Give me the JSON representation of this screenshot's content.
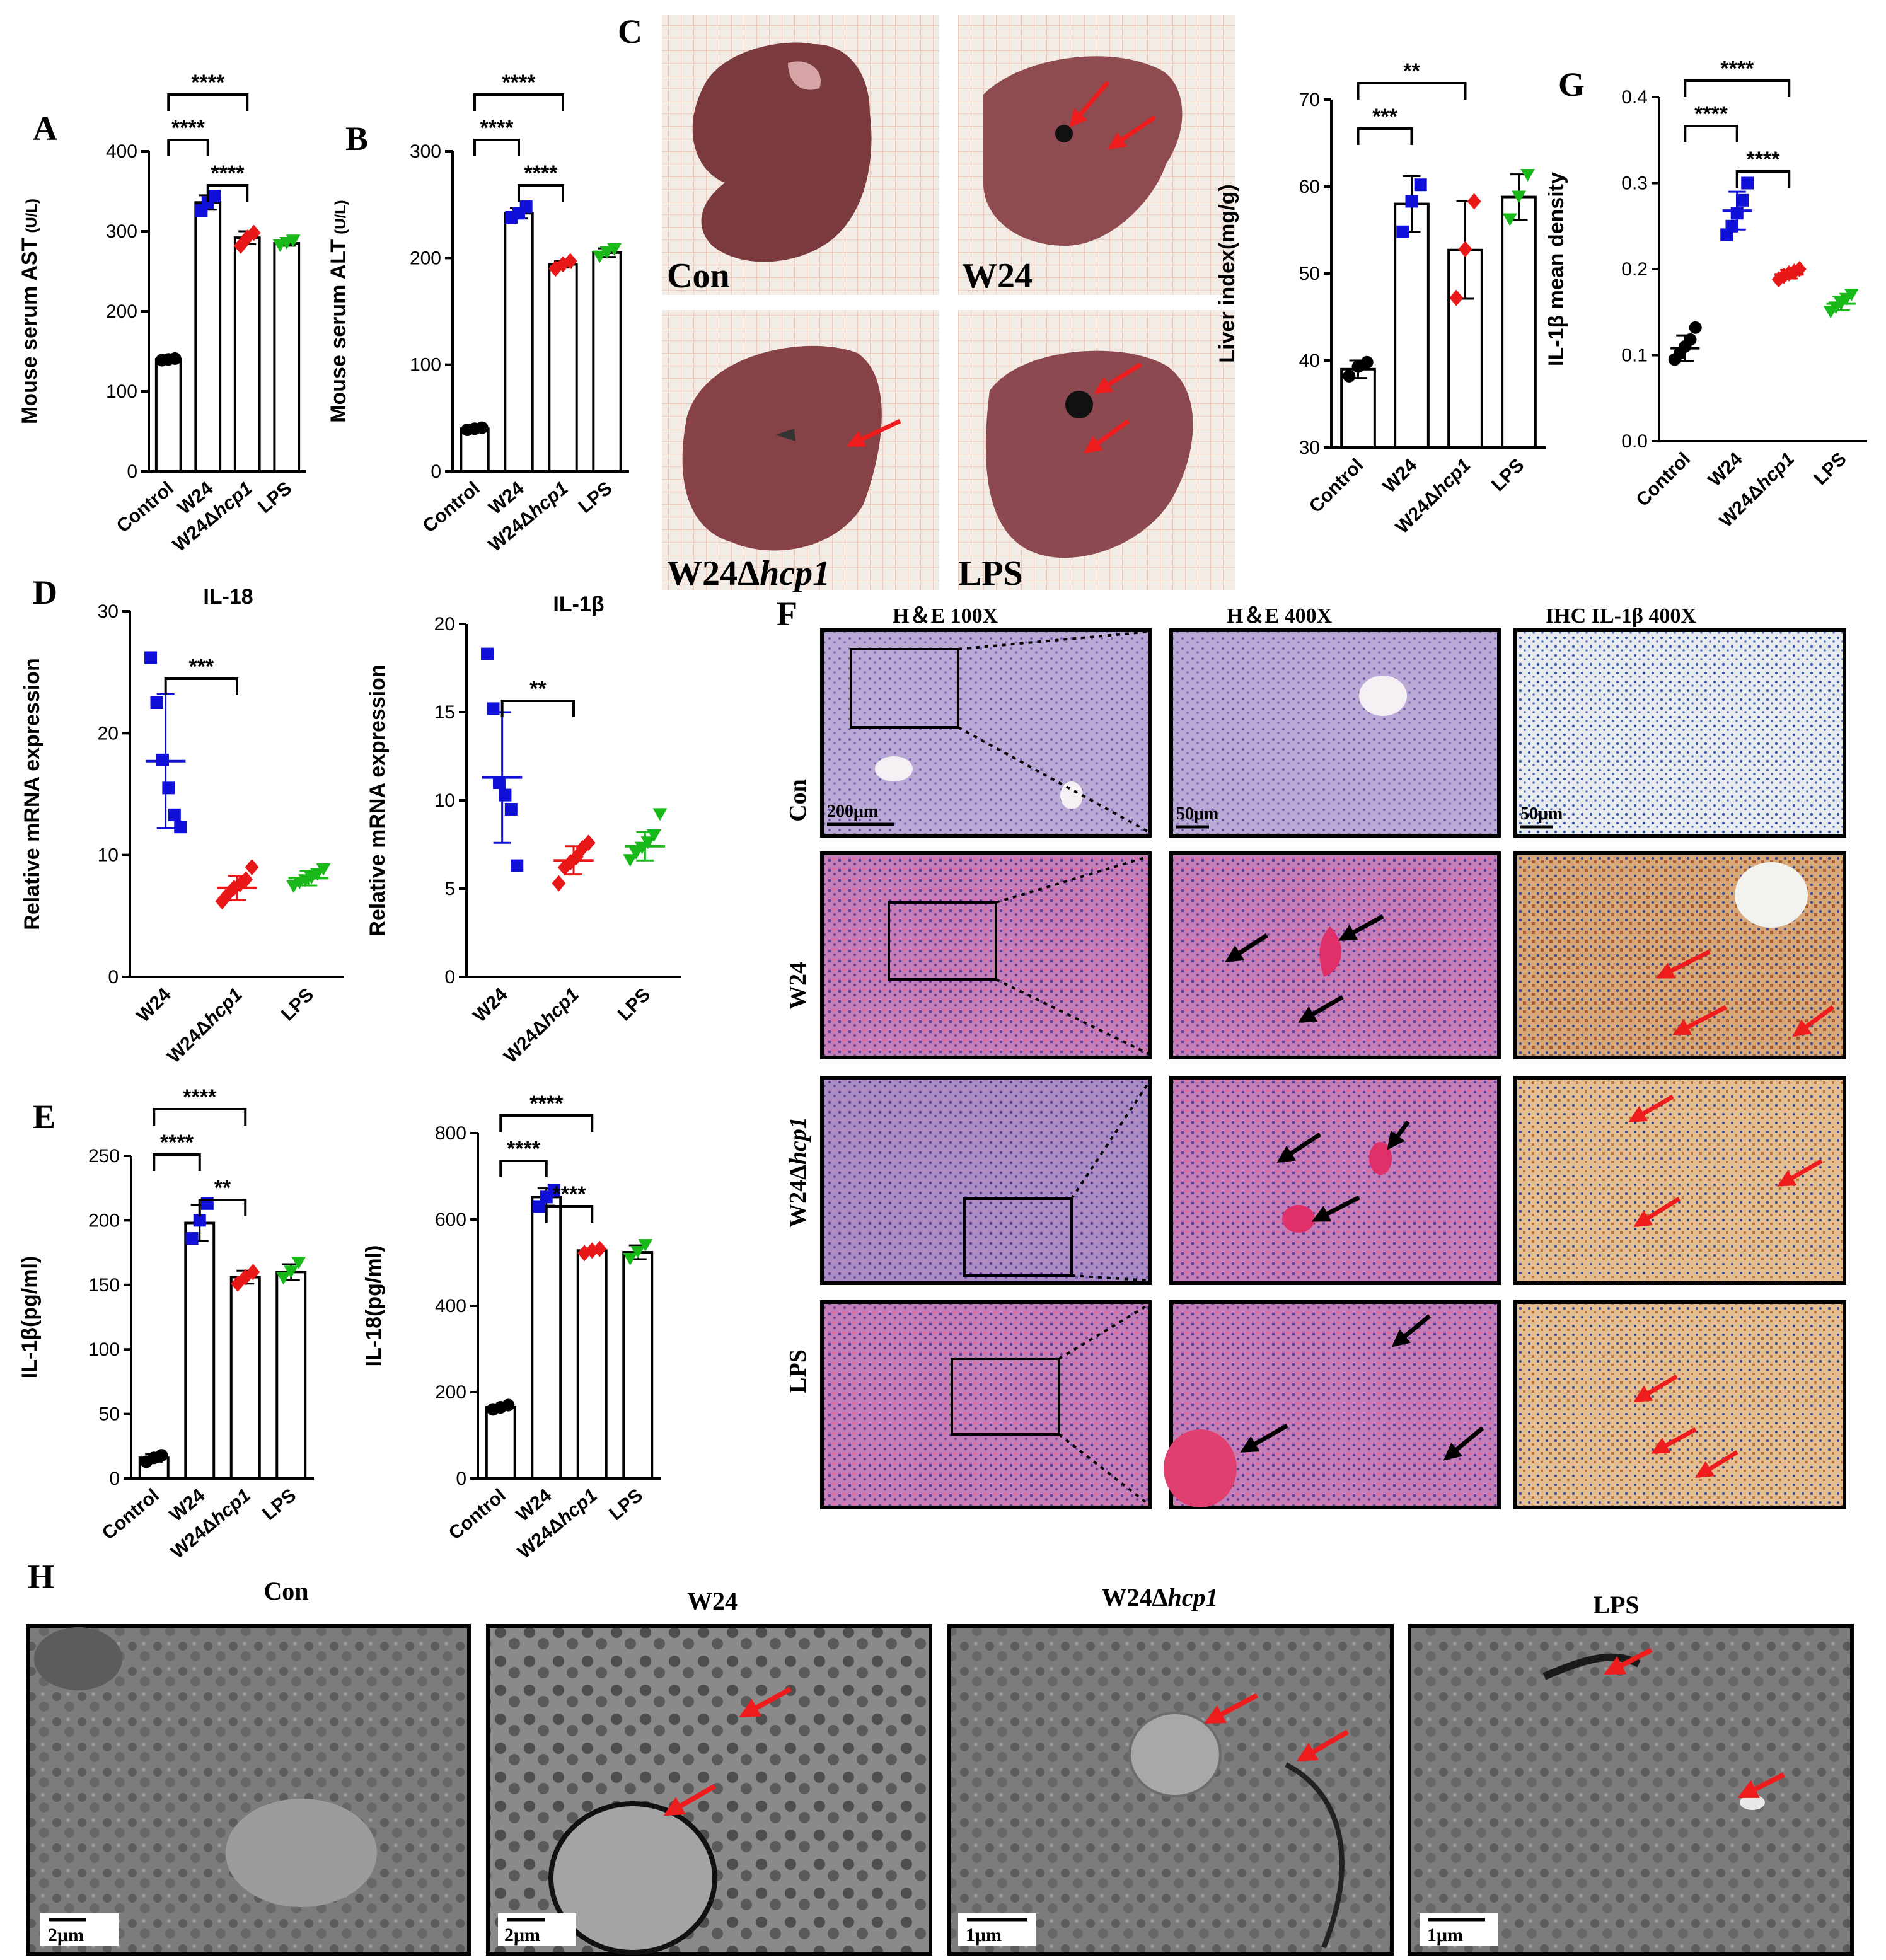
{
  "panels": {
    "A": "A",
    "B": "B",
    "C": "C",
    "D": "D",
    "E": "E",
    "F": "F",
    "G": "G",
    "H": "H"
  },
  "colors": {
    "Control": "#000000",
    "W24": "#1010d8",
    "W24Δhcp1": "#e81818",
    "LPS": "#18b818"
  },
  "liver_photos": {
    "labels": [
      "Con",
      "W24",
      "W24Δ",
      "LPS"
    ],
    "label_italic_suffix": "hcp1"
  },
  "histology": {
    "col_headers": [
      "H＆E      100X",
      "H＆E      400X",
      "IHC   IL-1β   400X"
    ],
    "row_labels": [
      "Con",
      "W24",
      "W24Δ",
      "LPS"
    ],
    "row_label_italic_suffix": "hcp1",
    "scale_bars": [
      "200μm",
      "50μm",
      "50μm"
    ]
  },
  "tem": {
    "titles": [
      "Con",
      "W24",
      "W24Δ",
      "LPS"
    ],
    "title_italic_suffix": "hcp1",
    "scale_bars": [
      "2μm",
      "2μm",
      "1μm",
      "1μm"
    ]
  },
  "chart_data": [
    {
      "id": "A",
      "type": "bar",
      "ylabel": "Mouse serum AST",
      "ylabel_unit": "(U/L)",
      "ylim": [
        0,
        400
      ],
      "yticks": [
        0,
        100,
        200,
        300,
        400
      ],
      "categories": [
        "Control",
        "W24",
        "W24Δhcp1",
        "LPS"
      ],
      "values": [
        140,
        336,
        292,
        285
      ],
      "points": [
        [
          139,
          140,
          141
        ],
        [
          326,
          336,
          344
        ],
        [
          282,
          292,
          298
        ],
        [
          282,
          285,
          288
        ]
      ],
      "errors": [
        2,
        9,
        8,
        3
      ],
      "significance": [
        {
          "from": 0,
          "to": 2,
          "label": "****"
        },
        {
          "from": 0,
          "to": 1,
          "label": "****"
        },
        {
          "from": 1,
          "to": 2,
          "label": "****"
        }
      ]
    },
    {
      "id": "B",
      "type": "bar",
      "ylabel": "Mouse serum ALT",
      "ylabel_unit": "(U/L)",
      "ylim": [
        0,
        300
      ],
      "yticks": [
        0,
        100,
        200,
        300
      ],
      "categories": [
        "Control",
        "W24",
        "W24Δhcp1",
        "LPS"
      ],
      "values": [
        40,
        242,
        194,
        205
      ],
      "points": [
        [
          39,
          40,
          41
        ],
        [
          238,
          242,
          248
        ],
        [
          190,
          194,
          197
        ],
        [
          201,
          205,
          208
        ]
      ],
      "errors": [
        1,
        5,
        3,
        4
      ],
      "significance": [
        {
          "from": 0,
          "to": 2,
          "label": "****"
        },
        {
          "from": 0,
          "to": 1,
          "label": "****"
        },
        {
          "from": 1,
          "to": 2,
          "label": "****"
        }
      ]
    },
    {
      "id": "C-index",
      "type": "bar",
      "ylabel": "Liver index(mg/g)",
      "ylim": [
        30,
        70
      ],
      "yticks": [
        30,
        40,
        50,
        60,
        70
      ],
      "categories": [
        "Control",
        "W24",
        "W24Δhcp1",
        "LPS"
      ],
      "values": [
        39,
        58,
        52.7,
        58.8
      ],
      "points": [
        [
          38.2,
          39.3,
          39.8
        ],
        [
          54.8,
          58.3,
          60.2
        ],
        [
          47.2,
          52.8,
          58.3
        ],
        [
          56.2,
          58.8,
          61.3
        ]
      ],
      "errors": [
        1,
        3.2,
        5.6,
        2.6
      ],
      "significance": [
        {
          "from": 0,
          "to": 2,
          "label": "**"
        },
        {
          "from": 0,
          "to": 1,
          "label": "***"
        }
      ]
    },
    {
      "id": "G",
      "type": "scatter",
      "ylabel": "IL-1β mean density",
      "ylim": [
        0.0,
        0.4
      ],
      "yticks": [
        "0.0",
        "0.1",
        "0.2",
        "0.3",
        "0.4"
      ],
      "categories": [
        "Control",
        "W24",
        "W24Δhcp1",
        "LPS"
      ],
      "values": [
        0.108,
        0.268,
        0.194,
        0.16
      ],
      "points": [
        [
          0.095,
          0.102,
          0.11,
          0.118,
          0.132
        ],
        [
          0.24,
          0.25,
          0.265,
          0.28,
          0.3
        ],
        [
          0.188,
          0.192,
          0.195,
          0.197,
          0.2
        ],
        [
          0.15,
          0.155,
          0.16,
          0.165,
          0.17
        ]
      ],
      "errors": [
        0.015,
        0.022,
        0.005,
        0.008
      ],
      "significance": [
        {
          "from": 0,
          "to": 2,
          "label": "****"
        },
        {
          "from": 0,
          "to": 1,
          "label": "****"
        },
        {
          "from": 1,
          "to": 2,
          "label": "****"
        }
      ]
    },
    {
      "id": "D-IL18",
      "type": "scatter",
      "title": "IL-18",
      "ylabel": "Relative mRNA expression",
      "ylim": [
        0,
        30
      ],
      "yticks": [
        0,
        10,
        20,
        30
      ],
      "categories": [
        "W24",
        "W24Δhcp1",
        "LPS"
      ],
      "values": [
        17.7,
        7.3,
        8.1
      ],
      "points": [
        [
          26.2,
          22.5,
          17.8,
          15.5,
          13.3,
          12.3
        ],
        [
          6.2,
          6.8,
          7.3,
          7.6,
          8.0,
          9.0
        ],
        [
          7.4,
          7.7,
          7.9,
          8.1,
          8.4,
          8.8
        ]
      ],
      "errors": [
        5.5,
        1.0,
        0.6
      ],
      "significance": [
        {
          "from": 0,
          "to": 1,
          "label": "***"
        }
      ]
    },
    {
      "id": "D-IL1b",
      "type": "scatter",
      "title": "IL-1β",
      "ylabel": "Relative mRNA expression",
      "ylim": [
        0,
        20
      ],
      "yticks": [
        0,
        5,
        10,
        15,
        20
      ],
      "categories": [
        "W24",
        "W24Δhcp1",
        "LPS"
      ],
      "values": [
        11.3,
        6.6,
        7.4
      ],
      "points": [
        [
          18.3,
          15.2,
          11.0,
          10.3,
          9.5,
          6.3
        ],
        [
          5.3,
          6.2,
          6.5,
          6.8,
          7.3,
          7.6
        ],
        [
          6.6,
          7.0,
          7.3,
          7.6,
          8.0,
          9.2
        ]
      ],
      "errors": [
        3.7,
        0.8,
        0.8
      ],
      "significance": [
        {
          "from": 0,
          "to": 1,
          "label": "**"
        }
      ]
    },
    {
      "id": "E-IL1b",
      "type": "bar",
      "ylabel": "IL-1β(pg/ml)",
      "ylim": [
        0,
        250
      ],
      "yticks": [
        0,
        50,
        100,
        150,
        200,
        250
      ],
      "categories": [
        "Control",
        "W24",
        "W24Δhcp1",
        "LPS"
      ],
      "values": [
        16,
        198,
        156,
        160
      ],
      "points": [
        [
          13,
          16,
          18
        ],
        [
          186,
          200,
          213
        ],
        [
          151,
          156,
          160
        ],
        [
          155,
          160,
          167
        ]
      ],
      "errors": [
        3,
        14,
        5,
        6
      ],
      "significance": [
        {
          "from": 0,
          "to": 2,
          "label": "****"
        },
        {
          "from": 0,
          "to": 1,
          "label": "****"
        },
        {
          "from": 1,
          "to": 2,
          "label": "**"
        }
      ]
    },
    {
      "id": "E-IL18",
      "type": "bar",
      "ylabel": "IL-18(pg/ml)",
      "ylim": [
        0,
        800
      ],
      "yticks": [
        0,
        200,
        400,
        600,
        800
      ],
      "categories": [
        "Control",
        "W24",
        "W24Δhcp1",
        "LPS"
      ],
      "values": [
        165,
        652,
        528,
        524
      ],
      "points": [
        [
          160,
          165,
          170
        ],
        [
          630,
          652,
          668
        ],
        [
          522,
          528,
          532
        ],
        [
          508,
          524,
          540
        ]
      ],
      "errors": [
        5,
        20,
        5,
        16
      ],
      "significance": [
        {
          "from": 0,
          "to": 2,
          "label": "****"
        },
        {
          "from": 0,
          "to": 1,
          "label": "****"
        },
        {
          "from": 1,
          "to": 2,
          "label": "****"
        }
      ]
    }
  ]
}
